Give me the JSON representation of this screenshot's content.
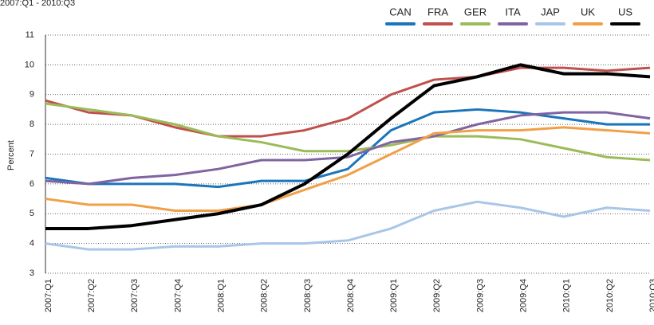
{
  "chart_data": {
    "type": "line",
    "subtitle": "2007:Q1 - 2010:Q3",
    "y_label": "Percent",
    "categories": [
      "2007:Q1",
      "2007:Q2",
      "2007:Q3",
      "2007:Q4",
      "2008:Q1",
      "2008:Q2",
      "2008:Q3",
      "2008:Q4",
      "2009:Q1",
      "2009:Q2",
      "2009:Q3",
      "2009:Q4",
      "2010:Q1",
      "2010:Q2",
      "2010:Q3"
    ],
    "ylim": [
      3,
      11
    ],
    "yticks": [
      3,
      4,
      5,
      6,
      7,
      8,
      9,
      10,
      11
    ],
    "grid": true,
    "series": [
      {
        "name": "CAN",
        "color": "#1a75bb",
        "values": [
          6.2,
          6.0,
          6.0,
          6.0,
          5.9,
          6.1,
          6.1,
          6.5,
          7.8,
          8.4,
          8.5,
          8.4,
          8.2,
          8.0,
          8.0
        ]
      },
      {
        "name": "FRA",
        "color": "#c0504d",
        "values": [
          8.8,
          8.4,
          8.3,
          7.9,
          7.6,
          7.6,
          7.8,
          8.2,
          9.0,
          9.5,
          9.6,
          9.9,
          9.9,
          9.8,
          9.9
        ]
      },
      {
        "name": "GER",
        "color": "#9bbb59",
        "values": [
          8.7,
          8.5,
          8.3,
          8.0,
          7.6,
          7.4,
          7.1,
          7.1,
          7.3,
          7.6,
          7.6,
          7.5,
          7.2,
          6.9,
          6.8
        ]
      },
      {
        "name": "ITA",
        "color": "#8064a2",
        "values": [
          6.1,
          6.0,
          6.2,
          6.3,
          6.5,
          6.8,
          6.8,
          6.9,
          7.4,
          7.6,
          8.0,
          8.3,
          8.4,
          8.4,
          8.2
        ]
      },
      {
        "name": "JAP",
        "color": "#a9c6e8",
        "values": [
          4.0,
          3.8,
          3.8,
          3.9,
          3.9,
          4.0,
          4.0,
          4.1,
          4.5,
          5.1,
          5.4,
          5.2,
          4.9,
          5.2,
          5.1
        ]
      },
      {
        "name": "UK",
        "color": "#f0a048",
        "values": [
          5.5,
          5.3,
          5.3,
          5.1,
          5.1,
          5.3,
          5.8,
          6.3,
          7.0,
          7.7,
          7.8,
          7.8,
          7.9,
          7.8,
          7.7
        ]
      },
      {
        "name": "US",
        "color": "#000000",
        "values": [
          4.5,
          4.5,
          4.6,
          4.8,
          5.0,
          5.3,
          6.0,
          7.0,
          8.2,
          9.3,
          9.6,
          10.0,
          9.7,
          9.7,
          9.6
        ]
      }
    ]
  }
}
